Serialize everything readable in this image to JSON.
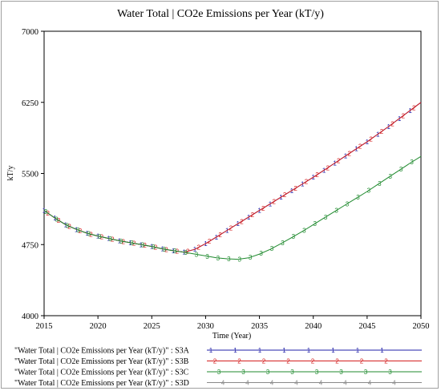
{
  "chart_data": {
    "type": "line",
    "title": "Water Total | CO2e Emissions per Year (kT/y)",
    "xlabel": "Time (Year)",
    "ylabel": "kT/y",
    "xlim": [
      2015,
      2050
    ],
    "ylim": [
      4000,
      7000
    ],
    "xticks": [
      "2015",
      "2020",
      "2025",
      "2030",
      "2035",
      "2040",
      "2045",
      "2050"
    ],
    "yticks": [
      "4000",
      "4750",
      "5500",
      "6250",
      "7000"
    ],
    "grid": false,
    "legend_position": "bottom",
    "series": [
      {
        "name": "\"Water Total | CO2e Emissions per Year (kT/y)\" : S3A",
        "marker": "1",
        "color": "#1f1fa8",
        "x": [
          2015,
          2016,
          2017,
          2018,
          2019,
          2020,
          2021,
          2022,
          2023,
          2024,
          2025,
          2026,
          2027,
          2028,
          2029,
          2030,
          2031,
          2032,
          2033,
          2034,
          2035,
          2036,
          2037,
          2038,
          2039,
          2040,
          2041,
          2042,
          2043,
          2044,
          2045,
          2046,
          2047,
          2048,
          2049,
          2050
        ],
        "values": [
          5110,
          5030,
          4960,
          4910,
          4870,
          4840,
          4815,
          4790,
          4770,
          4750,
          4730,
          4705,
          4685,
          4670,
          4700,
          4760,
          4830,
          4900,
          4970,
          5040,
          5110,
          5180,
          5250,
          5320,
          5390,
          5460,
          5535,
          5610,
          5685,
          5760,
          5835,
          5915,
          5995,
          6080,
          6165,
          6250
        ]
      },
      {
        "name": "\"Water Total | CO2e Emissions per Year (kT/y)\" : S3B",
        "marker": "2",
        "color": "#d42020",
        "x": [
          2015,
          2016,
          2017,
          2018,
          2019,
          2020,
          2021,
          2022,
          2023,
          2024,
          2025,
          2026,
          2027,
          2028,
          2029,
          2030,
          2031,
          2032,
          2033,
          2034,
          2035,
          2036,
          2037,
          2038,
          2039,
          2040,
          2041,
          2042,
          2043,
          2044,
          2045,
          2046,
          2047,
          2048,
          2049,
          2050
        ],
        "values": [
          5110,
          5030,
          4960,
          4910,
          4870,
          4840,
          4815,
          4790,
          4770,
          4750,
          4730,
          4705,
          4685,
          4670,
          4700,
          4760,
          4830,
          4900,
          4970,
          5040,
          5110,
          5180,
          5250,
          5320,
          5390,
          5460,
          5535,
          5610,
          5685,
          5760,
          5835,
          5915,
          5995,
          6080,
          6165,
          6250
        ]
      },
      {
        "name": "\"Water Total | CO2e Emissions per Year (kT/y)\" : S3C",
        "marker": "3",
        "color": "#1f8a2e",
        "x": [
          2015,
          2016,
          2017,
          2018,
          2019,
          2020,
          2021,
          2022,
          2023,
          2024,
          2025,
          2026,
          2027,
          2028,
          2029,
          2030,
          2031,
          2032,
          2033,
          2034,
          2035,
          2036,
          2037,
          2038,
          2039,
          2040,
          2041,
          2042,
          2043,
          2044,
          2045,
          2046,
          2047,
          2048,
          2049,
          2050
        ],
        "values": [
          5110,
          5030,
          4960,
          4910,
          4870,
          4840,
          4815,
          4790,
          4770,
          4750,
          4730,
          4705,
          4685,
          4670,
          4650,
          4630,
          4610,
          4600,
          4595,
          4610,
          4650,
          4700,
          4760,
          4825,
          4890,
          4960,
          5030,
          5100,
          5170,
          5240,
          5310,
          5385,
          5460,
          5535,
          5610,
          5680
        ]
      },
      {
        "name": "\"Water Total | CO2e Emissions per Year (kT/y)\" : S3D",
        "marker": "4",
        "color": "#8a8a8a",
        "x": [],
        "values": []
      }
    ]
  }
}
